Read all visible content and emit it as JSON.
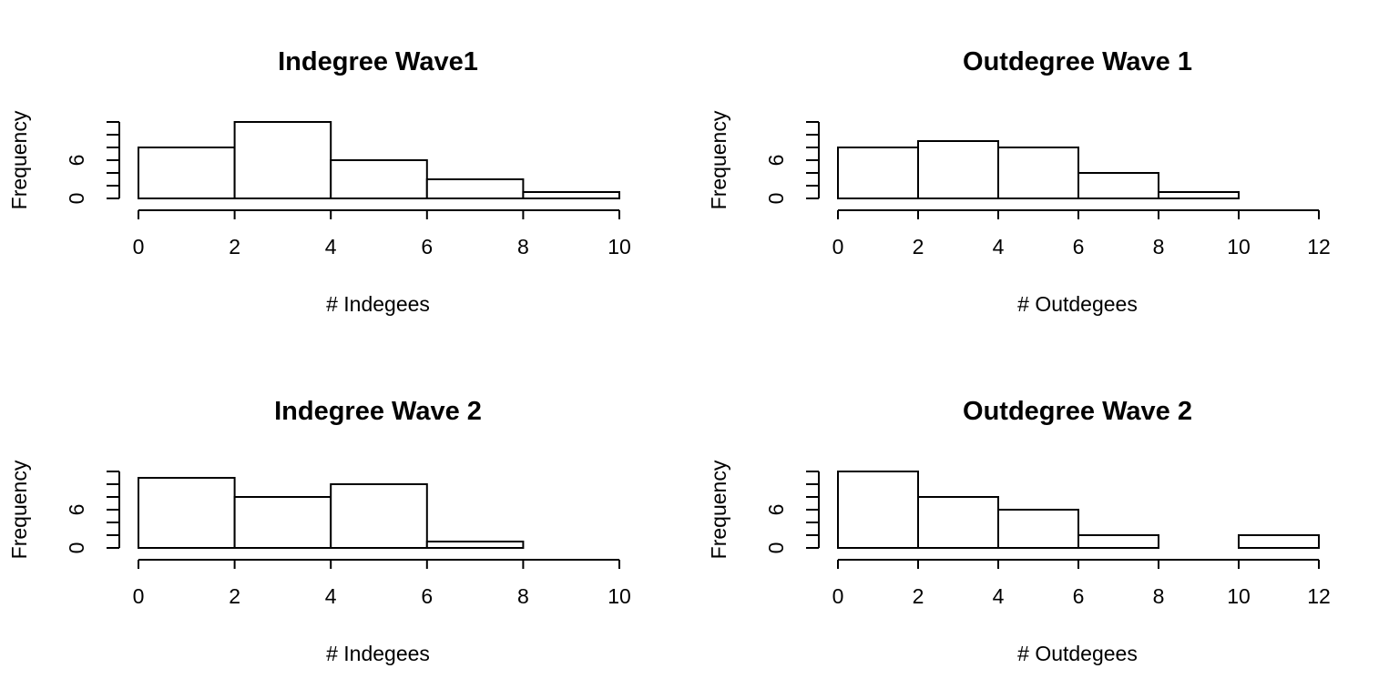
{
  "chart_data": [
    {
      "type": "bar",
      "title": "Indegree Wave1",
      "xlabel": "# Indegees",
      "ylabel": "Frequency",
      "bin_edges": [
        0,
        2,
        4,
        6,
        8,
        10
      ],
      "values": [
        8,
        12,
        6,
        3,
        1
      ],
      "xlim": [
        0,
        10
      ],
      "x_ticks": [
        0,
        2,
        4,
        6,
        8,
        10
      ],
      "ylim": [
        0,
        12
      ],
      "y_ticks": [
        0,
        2,
        4,
        6,
        8,
        10,
        12
      ],
      "y_tick_labels": [
        "0",
        "6"
      ]
    },
    {
      "type": "bar",
      "title": "Outdegree Wave 1",
      "xlabel": "# Outdegees",
      "ylabel": "Frequency",
      "bin_edges": [
        0,
        2,
        4,
        6,
        8,
        10,
        12
      ],
      "values": [
        8,
        9,
        8,
        4,
        1,
        0
      ],
      "xlim": [
        0,
        12
      ],
      "x_ticks": [
        0,
        2,
        4,
        6,
        8,
        10,
        12
      ],
      "ylim": [
        0,
        12
      ],
      "y_ticks": [
        0,
        2,
        4,
        6,
        8,
        10,
        12
      ],
      "y_tick_labels": [
        "0",
        "6"
      ]
    },
    {
      "type": "bar",
      "title": "Indegree Wave 2",
      "xlabel": "# Indegees",
      "ylabel": "Frequency",
      "bin_edges": [
        0,
        2,
        4,
        6,
        8,
        10
      ],
      "values": [
        11,
        8,
        10,
        1,
        0
      ],
      "xlim": [
        0,
        10
      ],
      "x_ticks": [
        0,
        2,
        4,
        6,
        8,
        10
      ],
      "ylim": [
        0,
        12
      ],
      "y_ticks": [
        0,
        2,
        4,
        6,
        8,
        10,
        12
      ],
      "y_tick_labels": [
        "0",
        "6"
      ]
    },
    {
      "type": "bar",
      "title": "Outdegree Wave 2",
      "xlabel": "# Outdegees",
      "ylabel": "Frequency",
      "bin_edges": [
        0,
        2,
        4,
        6,
        8,
        10,
        12
      ],
      "values": [
        12,
        8,
        6,
        2,
        0,
        2
      ],
      "xlim": [
        0,
        12
      ],
      "x_ticks": [
        0,
        2,
        4,
        6,
        8,
        10,
        12
      ],
      "ylim": [
        0,
        12
      ],
      "y_ticks": [
        0,
        2,
        4,
        6,
        8,
        10,
        12
      ],
      "y_tick_labels": [
        "0",
        "6"
      ]
    }
  ]
}
